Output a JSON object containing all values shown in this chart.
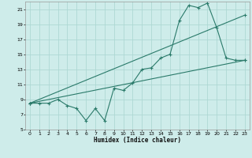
{
  "xlabel": "Humidex (Indice chaleur)",
  "bg_color": "#ceecea",
  "line_color": "#2a7a6a",
  "grid_color": "#aed8d4",
  "xlim": [
    -0.5,
    23.5
  ],
  "ylim": [
    5,
    22
  ],
  "xticks": [
    0,
    1,
    2,
    3,
    4,
    5,
    6,
    7,
    8,
    9,
    10,
    11,
    12,
    13,
    14,
    15,
    16,
    17,
    18,
    19,
    20,
    21,
    22,
    23
  ],
  "yticks": [
    5,
    7,
    9,
    11,
    13,
    15,
    17,
    19,
    21
  ],
  "curve1_x": [
    0,
    1,
    2,
    3,
    4,
    5,
    6,
    7,
    8,
    9,
    10,
    11,
    12,
    13,
    14,
    15,
    16,
    17,
    18,
    19,
    20,
    21,
    22,
    23
  ],
  "curve1_y": [
    8.5,
    8.5,
    8.5,
    9.0,
    8.2,
    7.8,
    6.2,
    7.8,
    6.2,
    10.5,
    10.2,
    11.2,
    13.0,
    13.2,
    14.5,
    15.0,
    19.5,
    21.5,
    21.2,
    21.8,
    18.5,
    14.5,
    14.2,
    14.2
  ],
  "curve2_x": [
    0,
    23
  ],
  "curve2_y": [
    8.5,
    20.2
  ],
  "curve3_x": [
    0,
    23
  ],
  "curve3_y": [
    8.5,
    14.2
  ]
}
